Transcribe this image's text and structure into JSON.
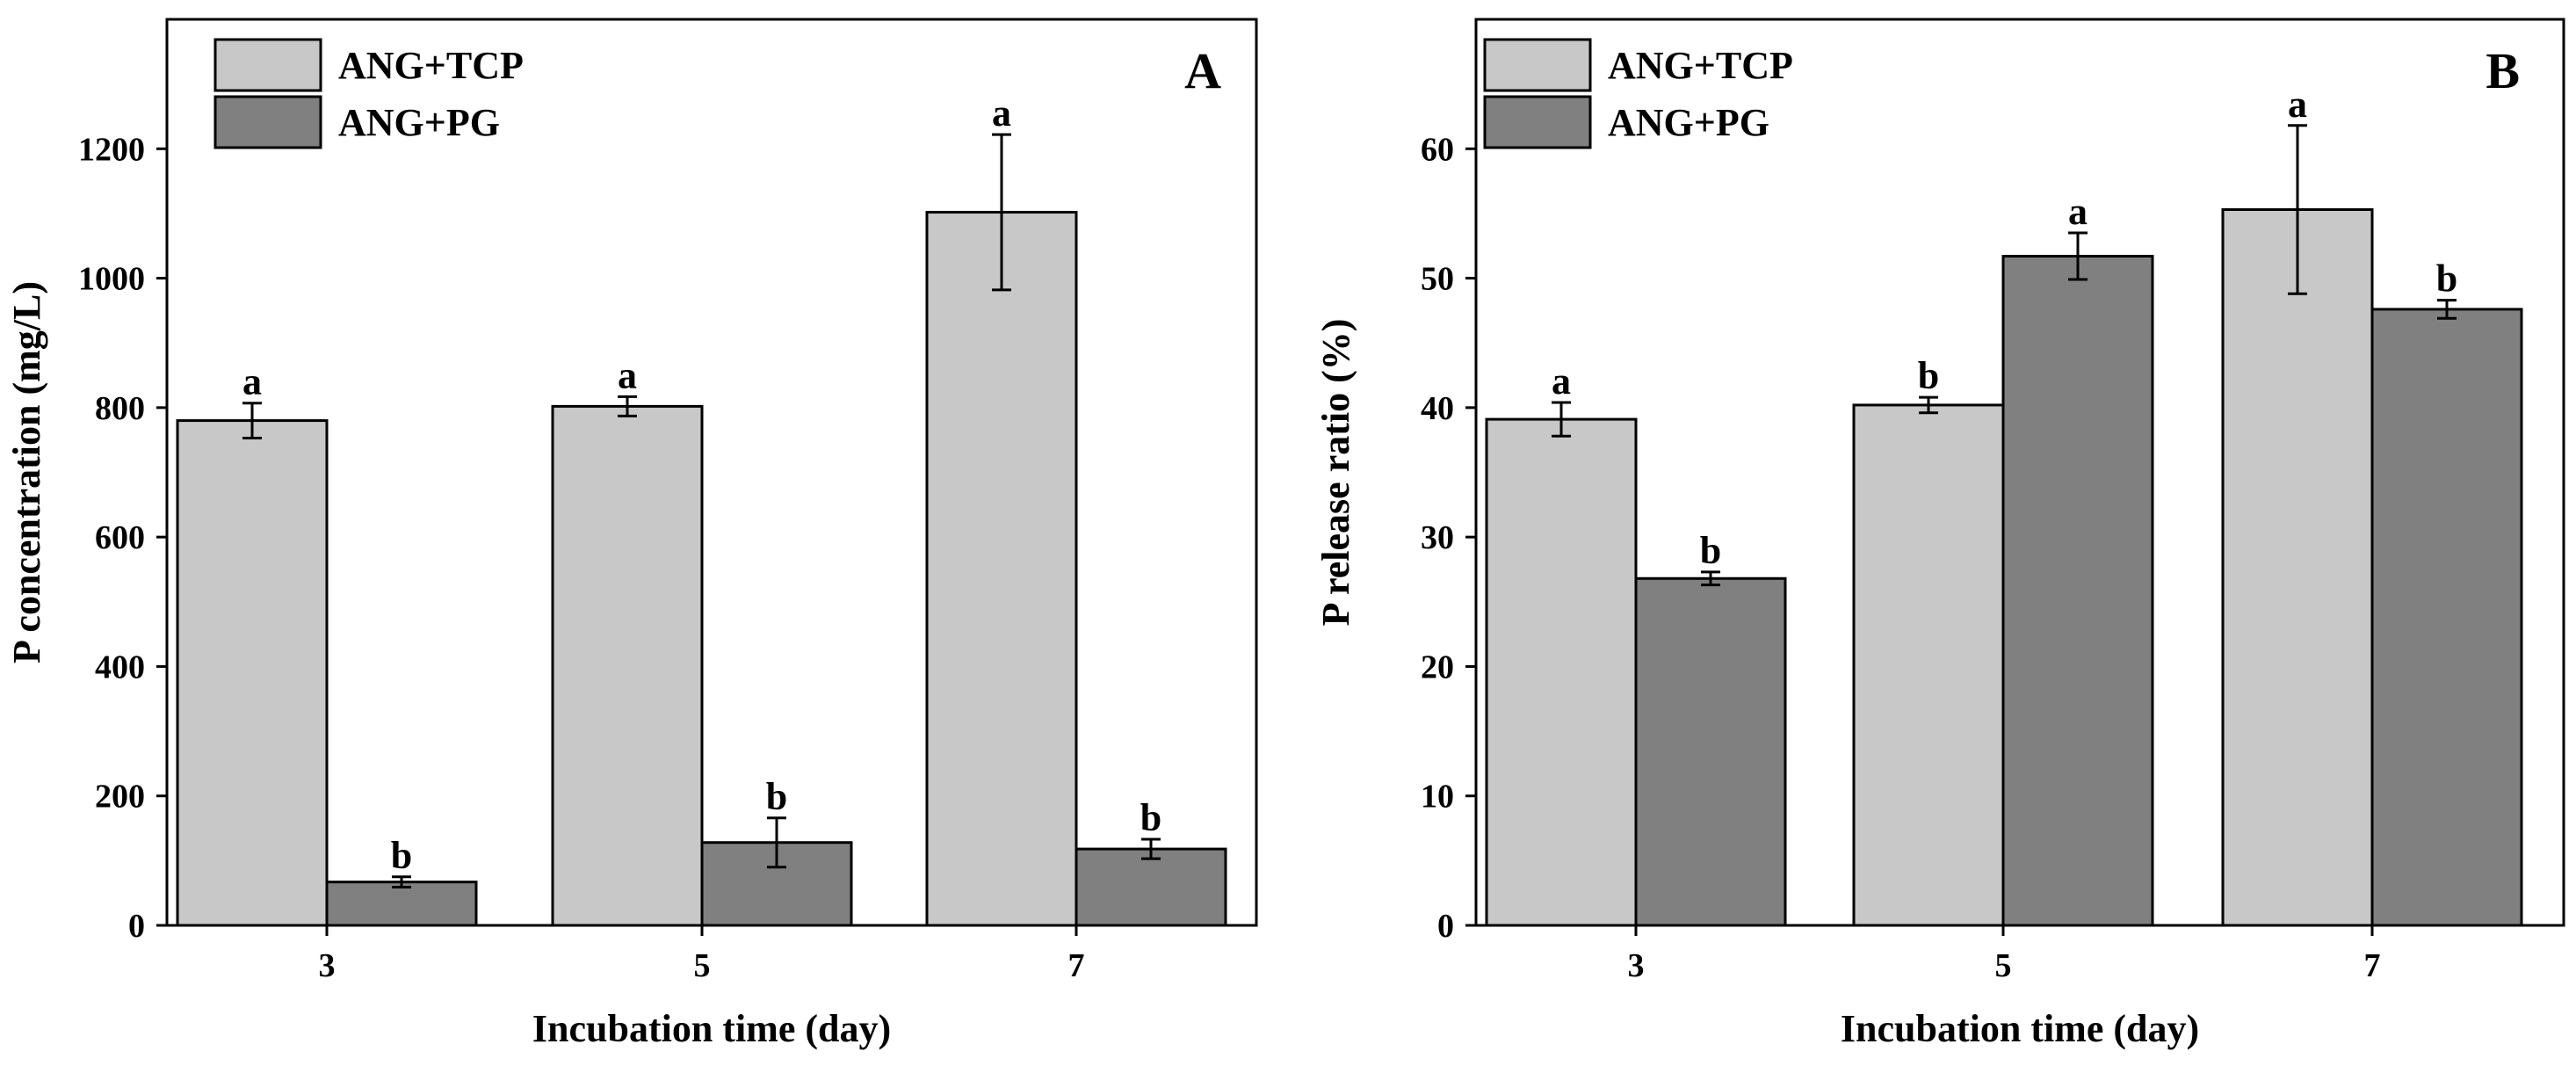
{
  "chart_data": [
    {
      "type": "bar",
      "panel": "A",
      "title": "",
      "xlabel": "Incubation time (day)",
      "ylabel": "P concentration (mg/L)",
      "ylim": [
        0,
        1400
      ],
      "yticks": [
        0,
        200,
        400,
        600,
        800,
        1000,
        1200
      ],
      "categories": [
        "3",
        "5",
        "7"
      ],
      "legend_position": "top-left",
      "series": [
        {
          "name": "ANG+TCP",
          "color": "#c8c8c8",
          "values": [
            780,
            802,
            1102
          ],
          "errors": [
            27,
            15,
            120
          ],
          "letters": [
            "a",
            "a",
            "a"
          ]
        },
        {
          "name": "ANG+PG",
          "color": "#808080",
          "values": [
            67,
            128,
            118
          ],
          "errors": [
            8,
            38,
            15
          ],
          "letters": [
            "b",
            "b",
            "b"
          ]
        }
      ]
    },
    {
      "type": "bar",
      "panel": "B",
      "title": "",
      "xlabel": "Incubation time (day)",
      "ylabel": "P release ratio (%)",
      "ylim": [
        0,
        70
      ],
      "yticks": [
        0,
        10,
        20,
        30,
        40,
        50,
        60
      ],
      "categories": [
        "3",
        "5",
        "7"
      ],
      "legend_position": "top-left",
      "series": [
        {
          "name": "ANG+TCP",
          "color": "#c8c8c8",
          "values": [
            39.1,
            40.2,
            55.3
          ],
          "errors": [
            1.3,
            0.6,
            6.5
          ],
          "letters": [
            "a",
            "b",
            "a"
          ]
        },
        {
          "name": "ANG+PG",
          "color": "#808080",
          "values": [
            26.8,
            51.7,
            47.6
          ],
          "errors": [
            0.5,
            1.8,
            0.7
          ],
          "letters": [
            "b",
            "a",
            "b"
          ]
        }
      ]
    }
  ]
}
